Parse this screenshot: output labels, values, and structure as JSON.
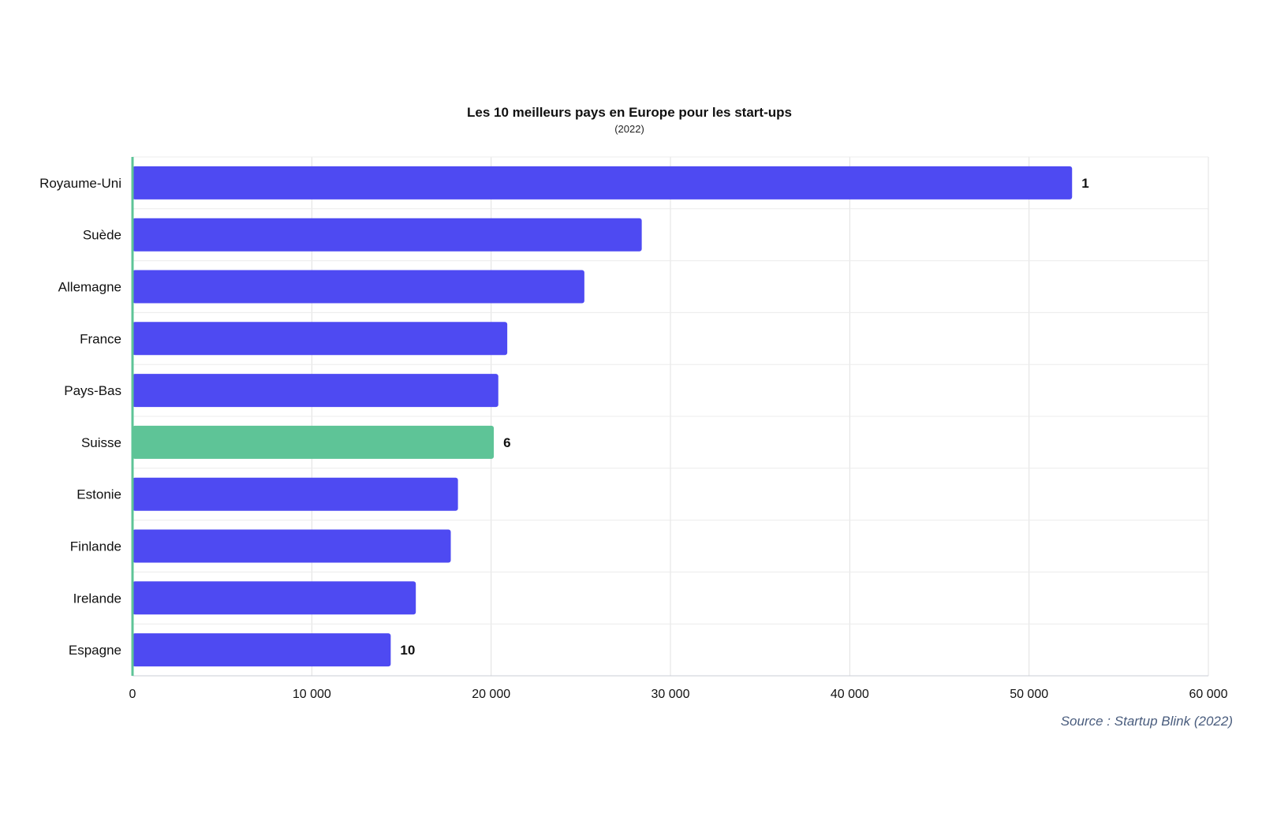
{
  "chart_data": {
    "type": "bar",
    "orientation": "horizontal",
    "title": "Les 10 meilleurs pays en Europe pour les start-ups",
    "subtitle": "(2022)",
    "categories": [
      "Royaume-Uni",
      "Suède",
      "Allemagne",
      "France",
      "Pays-Bas",
      "Suisse",
      "Estonie",
      "Finlande",
      "Irelande",
      "Espagne"
    ],
    "values": [
      52400,
      28400,
      25200,
      20900,
      20400,
      20150,
      18150,
      17750,
      15800,
      14400
    ],
    "highlight_category": "Suisse",
    "data_labels": [
      {
        "category": "Royaume-Uni",
        "text": "1"
      },
      {
        "category": "Suisse",
        "text": "6"
      },
      {
        "category": "Espagne",
        "text": "10"
      }
    ],
    "xlim": [
      0,
      60000
    ],
    "x_ticks": [
      0,
      10000,
      20000,
      30000,
      40000,
      50000,
      60000
    ],
    "x_tick_labels": [
      "0",
      "10 000",
      "20 000",
      "30 000",
      "40 000",
      "50 000",
      "60 000"
    ],
    "grid": true,
    "colors": {
      "bar": "#4e4af2",
      "highlight": "#5ec497",
      "axis": "#5ec497",
      "grid": "#e0e0e0"
    },
    "xlabel": "",
    "ylabel": ""
  },
  "source": "Source : Startup Blink (2022)"
}
